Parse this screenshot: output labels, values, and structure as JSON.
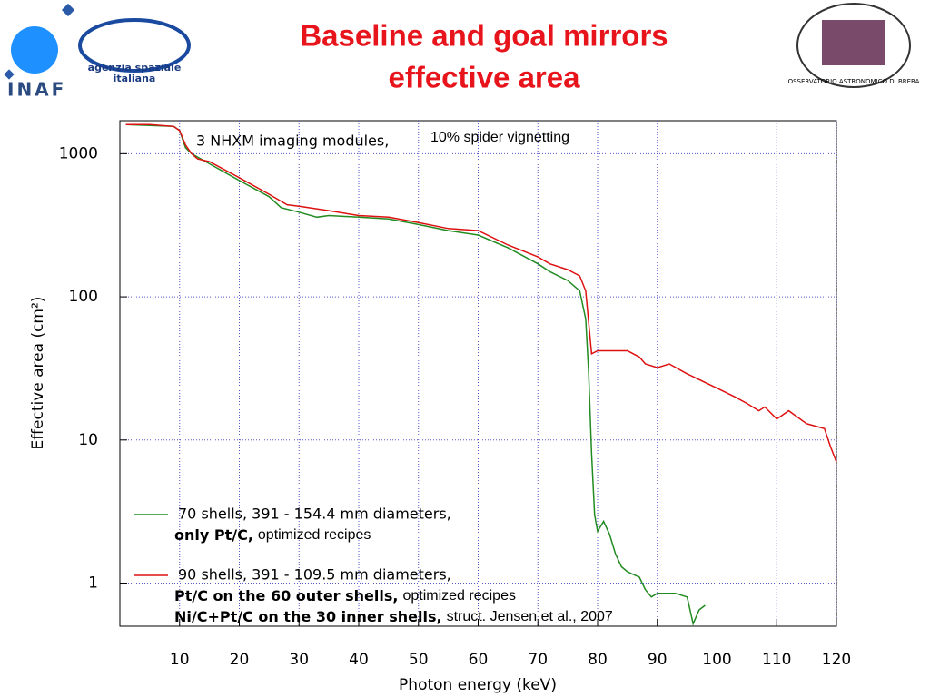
{
  "logos": {
    "inaf": "INAF",
    "asi": [
      "agenzia spaziale",
      "italiana"
    ],
    "brera": "OSSERVATORIO ASTRONOMICO DI BRERA"
  },
  "chart_data": {
    "type": "line",
    "title": [
      "Baseline and goal mirrors",
      "effective area"
    ],
    "annotations": [
      "3 NHXM imaging modules,",
      "10% spider vignetting"
    ],
    "xlabel": "Photon energy (keV)",
    "ylabel": "Effective area (cm²)",
    "xlim": [
      0,
      120
    ],
    "xticks": [
      10,
      20,
      30,
      40,
      50,
      60,
      70,
      80,
      90,
      100,
      110,
      120
    ],
    "ylim": [
      0.5,
      1700
    ],
    "yticks": [
      1,
      10,
      100,
      1000
    ],
    "log_y": true,
    "grid": true,
    "series": [
      {
        "name": "70 shells, 391 - 154.4 mm diameters,",
        "color": "#228b22",
        "description": [
          {
            "bold": "only Pt/C,",
            "text": "optimized recipes"
          }
        ],
        "x": [
          1,
          9,
          10,
          11,
          12,
          15,
          20,
          25,
          27,
          30,
          33,
          35,
          40,
          45,
          50,
          55,
          60,
          65,
          70,
          72,
          75,
          77,
          78,
          78.5,
          79,
          79.5,
          80,
          81,
          82,
          83,
          84,
          85,
          87,
          88,
          89,
          90,
          93,
          95,
          96,
          97,
          98
        ],
        "values": [
          1600,
          1550,
          1450,
          1100,
          1000,
          850,
          650,
          500,
          420,
          390,
          360,
          370,
          360,
          350,
          320,
          290,
          270,
          220,
          170,
          150,
          130,
          110,
          70,
          30,
          8,
          3,
          2.3,
          2.7,
          2.2,
          1.6,
          1.3,
          1.2,
          1.1,
          0.9,
          0.8,
          0.85,
          0.85,
          0.8,
          0.52,
          0.65,
          0.7
        ]
      },
      {
        "name": "90 shells, 391 - 109.5 mm diameters,",
        "color": "#dd1111",
        "description": [
          {
            "bold": "Pt/C on the 60 outer shells,",
            "text": "optimized recipes"
          },
          {
            "bold": "Ni/C+Pt/C on the 30 inner shells,",
            "text": "struct. Jensen et al., 2007"
          }
        ],
        "x": [
          1,
          5,
          9,
          10,
          11,
          12,
          13,
          15,
          20,
          25,
          28,
          30,
          35,
          40,
          45,
          50,
          55,
          60,
          65,
          70,
          72,
          75,
          77,
          78,
          79,
          80,
          82,
          85,
          87,
          88,
          90,
          92,
          95,
          100,
          103,
          105,
          107,
          108,
          110,
          112,
          115,
          118,
          119,
          120
        ],
        "values": [
          1600,
          1600,
          1550,
          1450,
          1150,
          1000,
          920,
          880,
          680,
          520,
          440,
          430,
          400,
          370,
          360,
          330,
          300,
          290,
          230,
          190,
          170,
          155,
          140,
          110,
          40,
          42,
          42,
          42,
          38,
          34,
          32,
          34,
          29,
          23,
          20,
          18,
          16,
          17,
          14,
          16,
          13,
          12,
          9,
          7
        ]
      }
    ]
  }
}
